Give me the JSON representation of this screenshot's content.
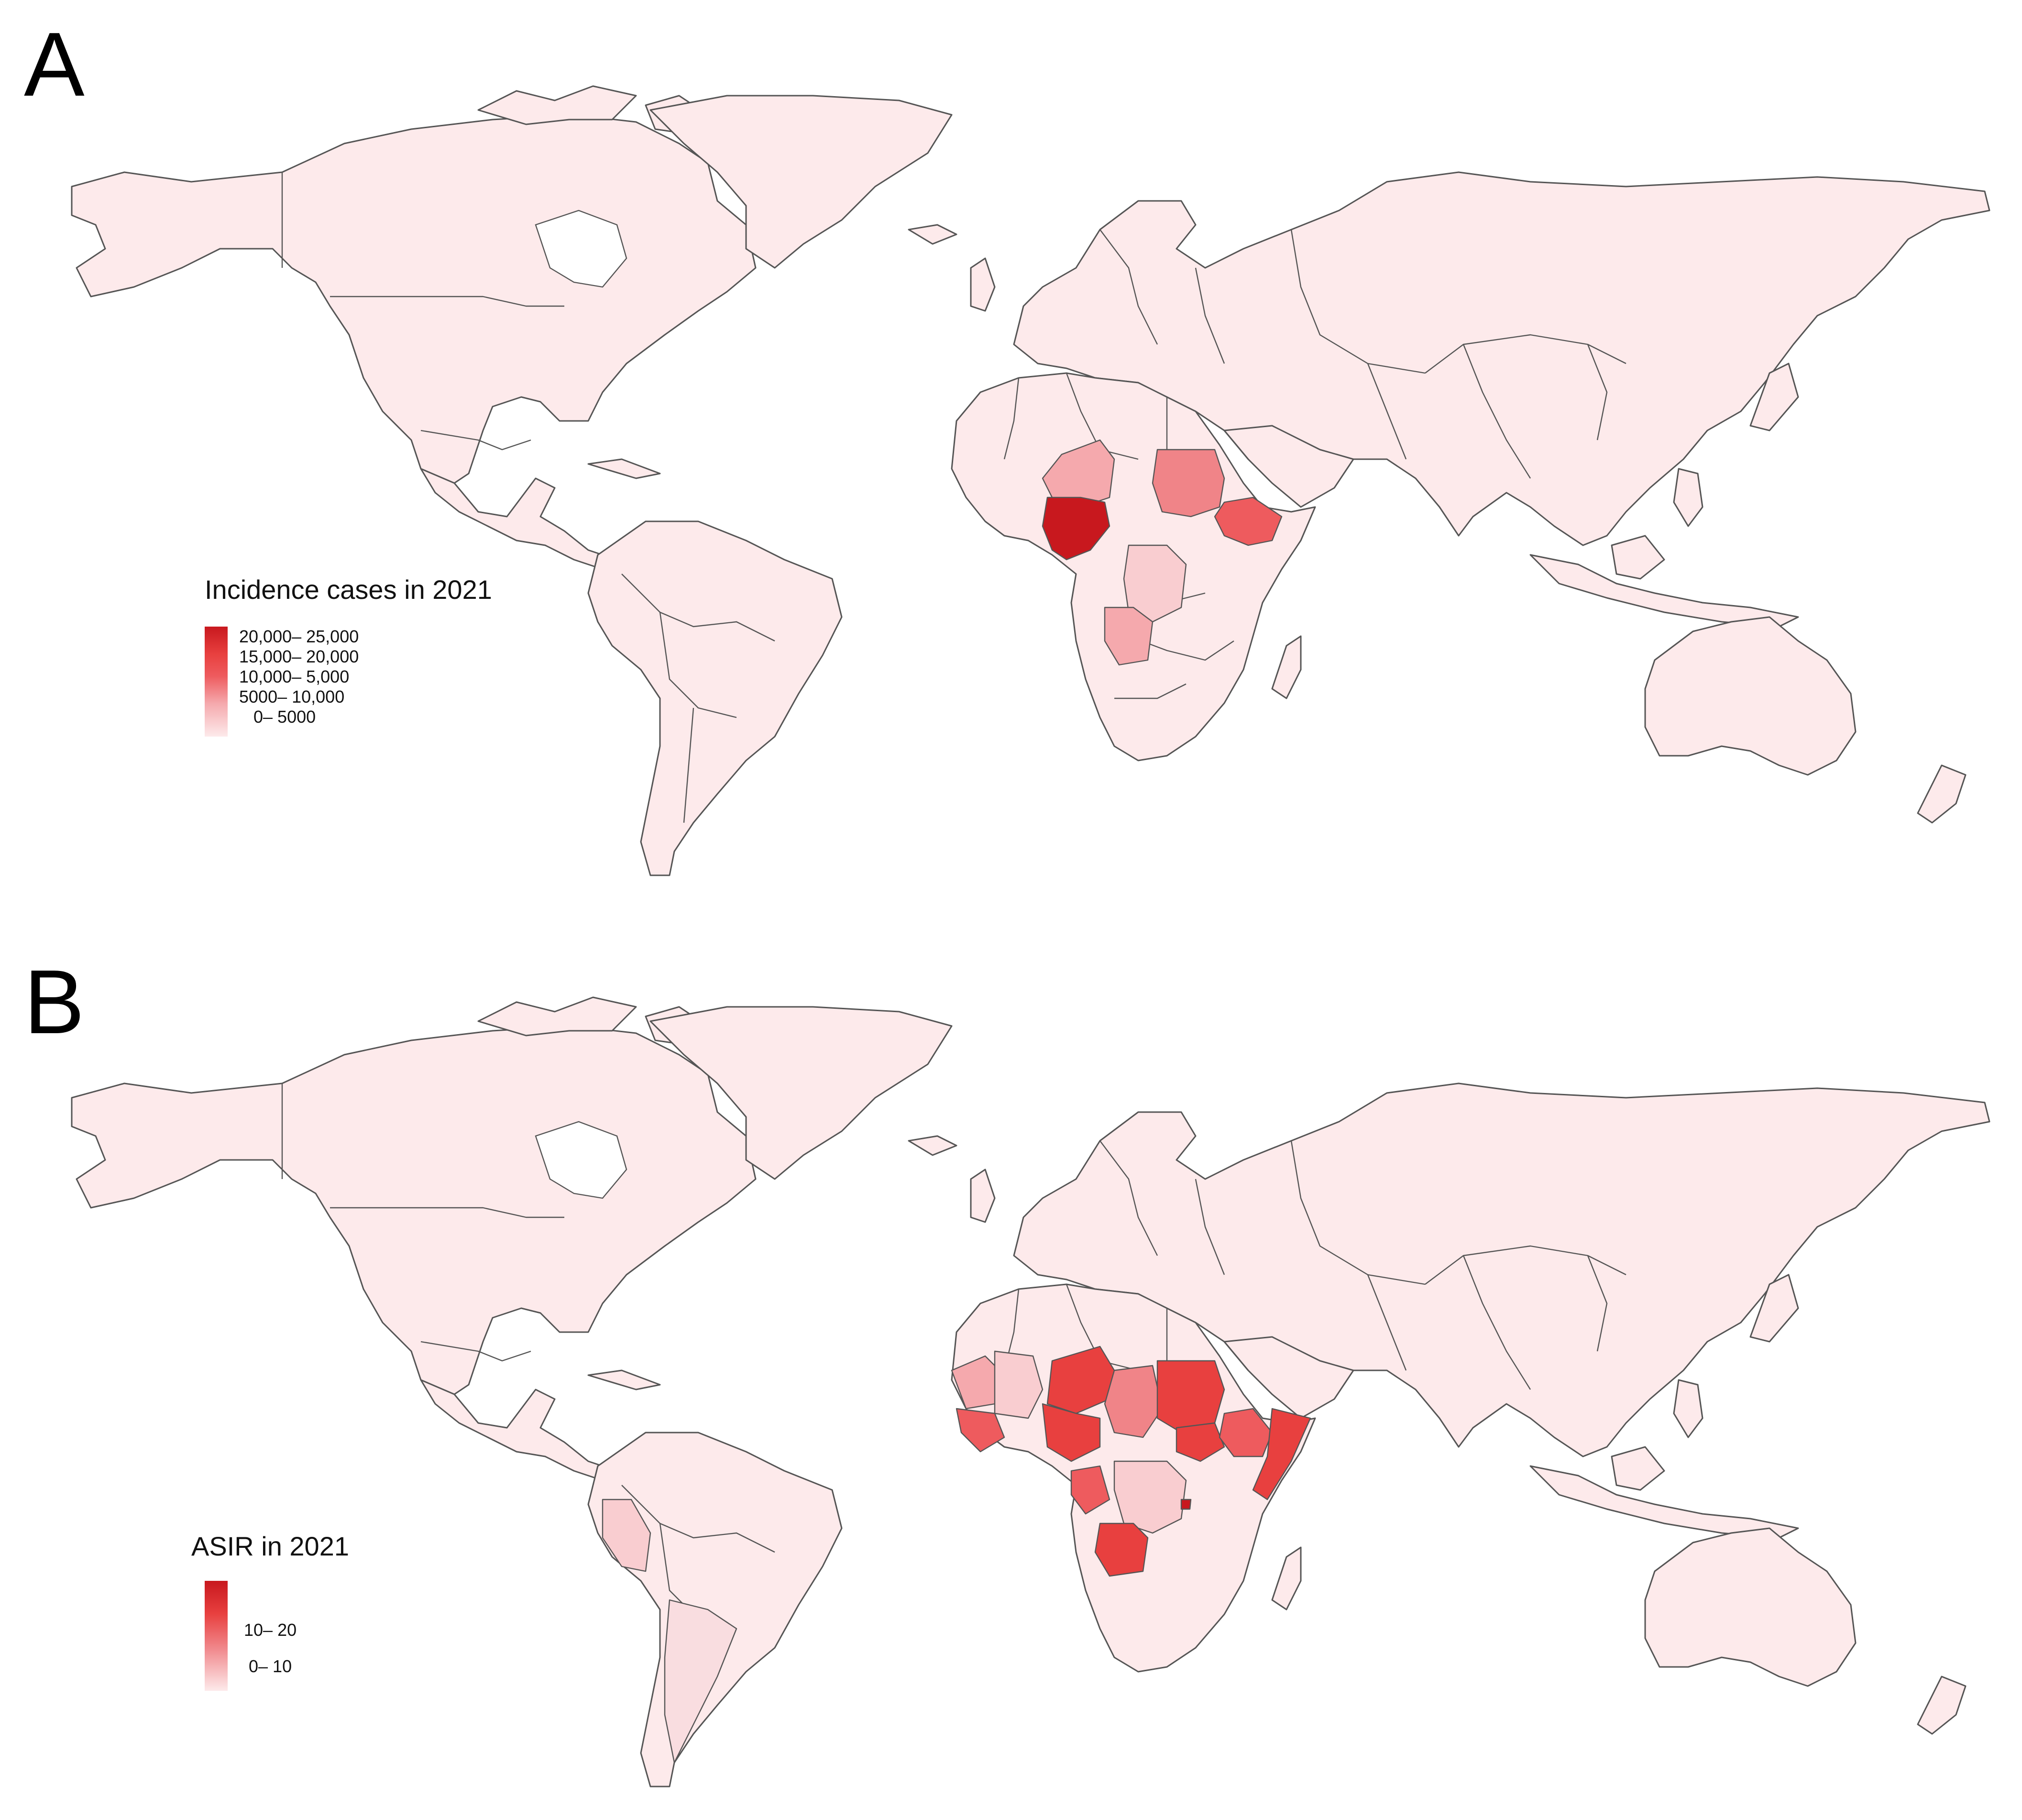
{
  "panels": [
    {
      "label": "A",
      "legend": {
        "title": "Incidence cases in 2021",
        "items": [
          "20,000– 25,000",
          "15,000– 20,000",
          "10,000– 5,000",
          "5000– 10,000",
          "0– 5000"
        ]
      }
    },
    {
      "label": "B",
      "legend": {
        "title": "ASIR in 2021",
        "items": [
          "10– 20",
          "0– 10"
        ]
      }
    }
  ],
  "colors": {
    "base": "#fdeaeb",
    "light": "#f9cdd0",
    "medium_light": "#f5a9ad",
    "medium": "#f08488",
    "strong": "#ee5b5e",
    "stronger": "#e8403f",
    "darkest": "#c8181e",
    "border": "#555555"
  }
}
